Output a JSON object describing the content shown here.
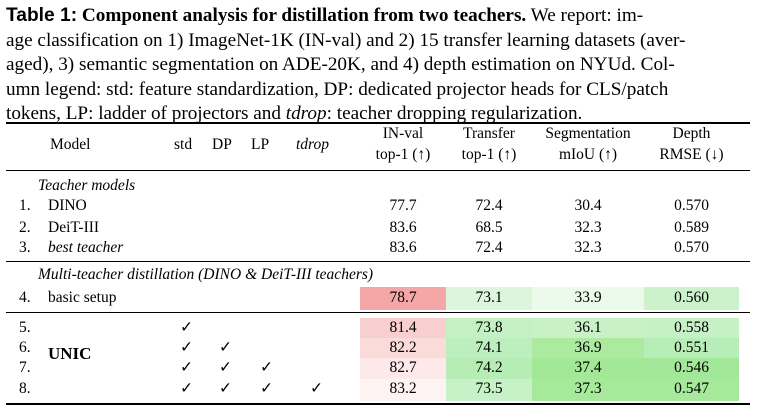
{
  "caption": {
    "label": "Table 1:",
    "lead": "Component analysis for distillation from two teachers.",
    "line1_rest": "We report: im-",
    "line2": "age classification on 1) ImageNet-1K (IN-val) and 2) 15 transfer learning datasets (aver-",
    "line3": "aged), 3) semantic segmentation on ADE-20K, and 4) depth estimation on NYUd. Col-",
    "line4": "umn legend: std: feature standardization, DP: dedicated projector heads for CLS/patch",
    "line5_a": "tokens, LP: ladder of projectors and",
    "line5_tdrop": "tdrop",
    "line5_b": ": teacher dropping regularization."
  },
  "header": {
    "model": "Model",
    "std": "std",
    "dp": "DP",
    "lp": "LP",
    "tdrop": "tdrop",
    "inval_1": "IN-val",
    "inval_2": "top-1 (↑)",
    "transfer_1": "Transfer",
    "transfer_2": "top-1 (↑)",
    "seg_1": "Segmentation",
    "seg_2": "mIoU (↑)",
    "depth_1": "Depth",
    "depth_2": "RMSE (↓)"
  },
  "sections": {
    "teacher": "Teacher models",
    "multi": "Multi-teacher distillation (DINO & DeiT-III teachers)"
  },
  "teacher_rows": [
    {
      "num": "1.",
      "model": "DINO",
      "inval": "77.7",
      "transfer": "72.4",
      "seg": "30.4",
      "depth": "0.570"
    },
    {
      "num": "2.",
      "model": "DeiT-III",
      "inval": "83.6",
      "transfer": "68.5",
      "seg": "32.3",
      "depth": "0.589"
    },
    {
      "num": "3.",
      "model": "best teacher",
      "inval": "83.6",
      "transfer": "72.4",
      "seg": "32.3",
      "depth": "0.570"
    }
  ],
  "basic_row": {
    "num": "4.",
    "model": "basic setup",
    "inval": "78.7",
    "transfer": "73.1",
    "seg": "33.9",
    "depth": "0.560"
  },
  "unic_label": "UNIC",
  "check": "✓",
  "unic_rows": [
    {
      "num": "5.",
      "inval": "81.4",
      "transfer": "73.8",
      "seg": "36.1",
      "depth": "0.558"
    },
    {
      "num": "6.",
      "inval": "82.2",
      "transfer": "74.1",
      "seg": "36.9",
      "depth": "0.551"
    },
    {
      "num": "7.",
      "inval": "82.7",
      "transfer": "74.2",
      "seg": "37.4",
      "depth": "0.546"
    },
    {
      "num": "8.",
      "inval": "83.2",
      "transfer": "73.5",
      "seg": "37.3",
      "depth": "0.547"
    }
  ],
  "colors": {
    "basic_inval": "#f5a6a6",
    "basic_transfer": "#dcf5dc",
    "basic_seg": "#ecfaec",
    "basic_depth": "#cbf2cb",
    "r5_inval": "#f9cece",
    "r5_transfer": "#c4f0c4",
    "r5_seg": "#c8f1c8",
    "r5_depth": "#c6f1c6",
    "r6_inval": "#fbdada",
    "r6_transfer": "#bdeebd",
    "r6_seg": "#acea9f",
    "r6_depth": "#b7edb7",
    "r7_inval": "#fde9e9",
    "r7_transfer": "#b5edb5",
    "r7_seg": "#a2e896",
    "r7_depth": "#a3e89a",
    "r8_inval": "#fdf3f3",
    "r8_transfer": "#c7f1c7",
    "r8_seg": "#a6e99a",
    "r8_depth": "#a6e99b"
  }
}
